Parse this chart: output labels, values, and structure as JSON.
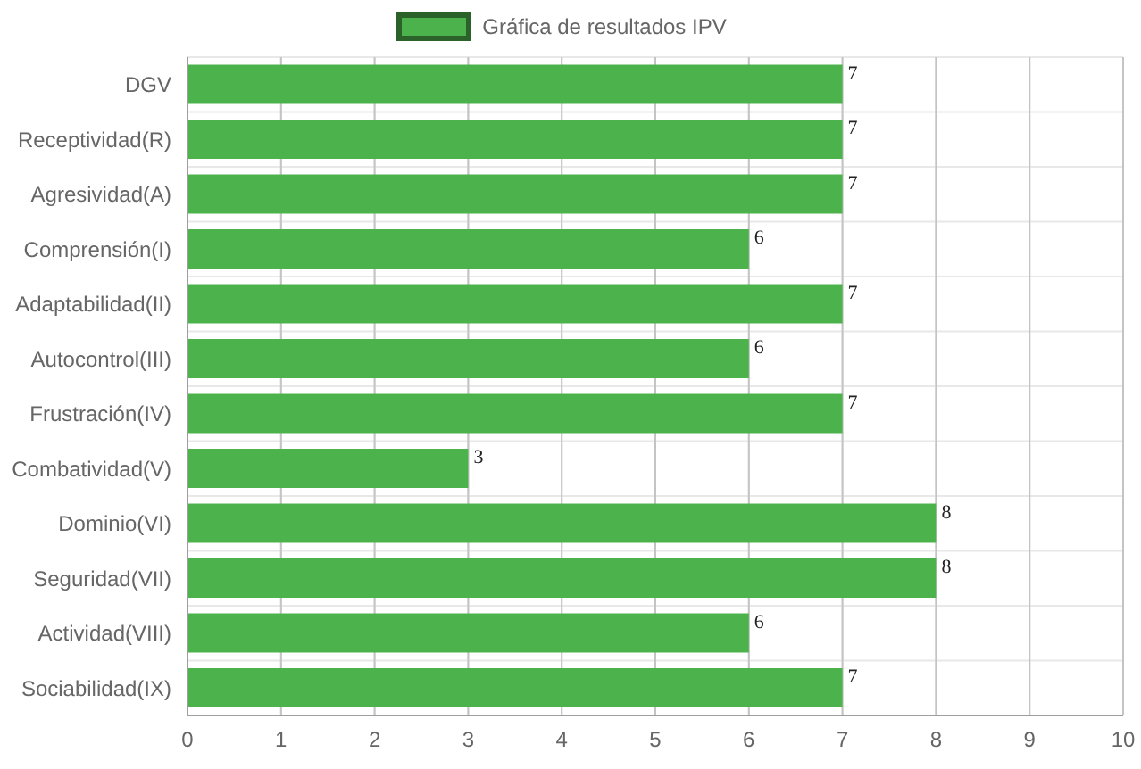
{
  "chart_data": {
    "type": "bar",
    "orientation": "horizontal",
    "categories": [
      "DGV",
      "Receptividad(R)",
      "Agresividad(A)",
      "Comprensión(I)",
      "Adaptabilidad(II)",
      "Autocontrol(III)",
      "Frustración(IV)",
      "Combatividad(V)",
      "Dominio(VI)",
      "Seguridad(VII)",
      "Actividad(VIII)",
      "Sociabilidad(IX)"
    ],
    "series": [
      {
        "name": "Gráfica de resultados IPV",
        "color": "#4cb34c",
        "values": [
          7,
          7,
          7,
          6,
          7,
          6,
          7,
          3,
          8,
          8,
          6,
          7
        ]
      }
    ],
    "xlim": [
      0,
      10
    ],
    "xticks": [
      0,
      1,
      2,
      3,
      4,
      5,
      6,
      7,
      8,
      9,
      10
    ],
    "grid": true,
    "legend": "top",
    "data_labels": true
  }
}
